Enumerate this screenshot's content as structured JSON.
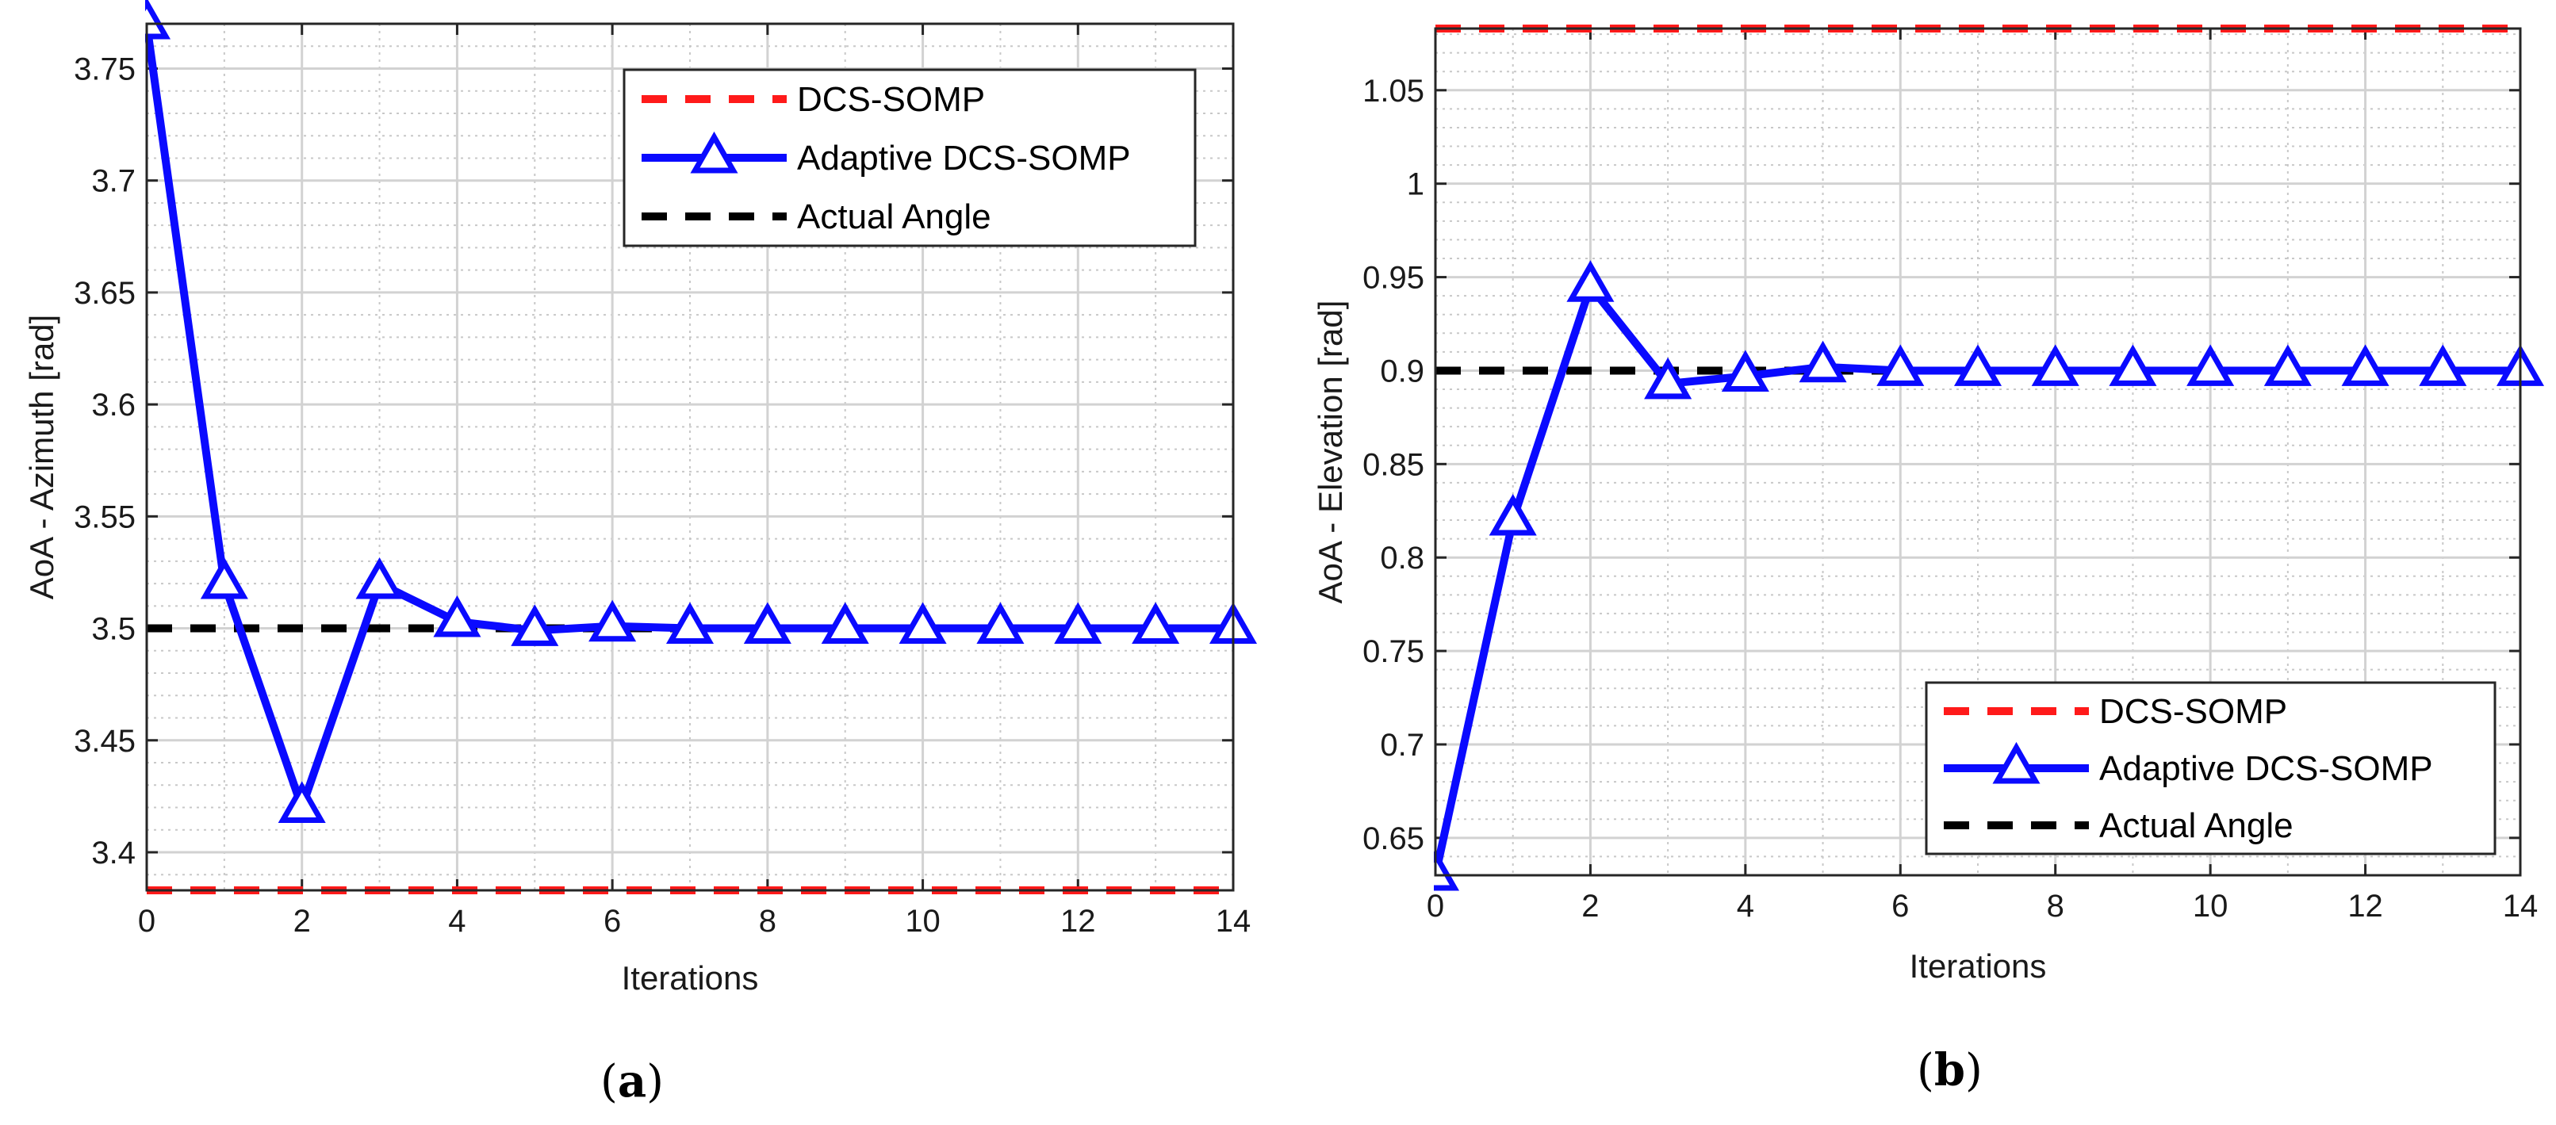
{
  "chart_data": [
    {
      "type": "line",
      "panel": "a",
      "caption_open": "(",
      "caption_letter": "a",
      "caption_close": ")",
      "xlabel": "Iterations",
      "ylabel": "AoA - Azimuth [rad]",
      "xlim": [
        0,
        14
      ],
      "ylim": [
        3.383,
        3.77
      ],
      "xticks": [
        0,
        2,
        4,
        6,
        8,
        10,
        12,
        14
      ],
      "yticks": [
        3.4,
        3.45,
        3.5,
        3.55,
        3.6,
        3.65,
        3.7,
        3.75
      ],
      "ytick_labels": [
        "3.4",
        "3.45",
        "3.5",
        "3.55",
        "3.6",
        "3.65",
        "3.7",
        "3.75"
      ],
      "grid": true,
      "legend_position": "top-right",
      "series": [
        {
          "name": "DCS-SOMP",
          "style": "dashed",
          "color": "#ff1a1a",
          "x": [
            0,
            14
          ],
          "values": [
            3.383,
            3.383
          ]
        },
        {
          "name": "Adaptive DCS-SOMP",
          "style": "solid-triangle",
          "color": "#0a0aff",
          "x": [
            0,
            1,
            2,
            3,
            4,
            5,
            6,
            7,
            8,
            9,
            10,
            11,
            12,
            13,
            14
          ],
          "values": [
            3.77,
            3.52,
            3.42,
            3.52,
            3.503,
            3.499,
            3.501,
            3.5,
            3.5,
            3.5,
            3.5,
            3.5,
            3.5,
            3.5,
            3.5
          ]
        },
        {
          "name": "Actual Angle",
          "style": "dashed",
          "color": "#000000",
          "x": [
            0,
            14
          ],
          "values": [
            3.5,
            3.5
          ]
        }
      ]
    },
    {
      "type": "line",
      "panel": "b",
      "caption_open": "(",
      "caption_letter": "b",
      "caption_close": ")",
      "xlabel": "Iterations",
      "ylabel": "AoA - Elevation [rad]",
      "xlim": [
        0,
        14
      ],
      "ylim": [
        0.63,
        1.083
      ],
      "xticks": [
        0,
        2,
        4,
        6,
        8,
        10,
        12,
        14
      ],
      "yticks": [
        0.65,
        0.7,
        0.75,
        0.8,
        0.85,
        0.9,
        0.95,
        1.0,
        1.05
      ],
      "ytick_labels": [
        "0.65",
        "0.7",
        "0.75",
        "0.8",
        "0.85",
        "0.9",
        "0.95",
        "1",
        "1.05"
      ],
      "grid": true,
      "legend_position": "bottom-right",
      "series": [
        {
          "name": "DCS-SOMP",
          "style": "dashed",
          "color": "#ff1a1a",
          "x": [
            0,
            14
          ],
          "values": [
            1.083,
            1.083
          ]
        },
        {
          "name": "Adaptive DCS-SOMP",
          "style": "solid-triangle",
          "color": "#0a0aff",
          "x": [
            0,
            1,
            2,
            3,
            4,
            5,
            6,
            7,
            8,
            9,
            10,
            11,
            12,
            13,
            14
          ],
          "values": [
            0.63,
            0.82,
            0.945,
            0.893,
            0.897,
            0.902,
            0.9,
            0.9,
            0.9,
            0.9,
            0.9,
            0.9,
            0.9,
            0.9,
            0.9
          ]
        },
        {
          "name": "Actual Angle",
          "style": "dashed",
          "color": "#000000",
          "x": [
            0,
            14
          ],
          "values": [
            0.9,
            0.9
          ]
        }
      ]
    }
  ]
}
